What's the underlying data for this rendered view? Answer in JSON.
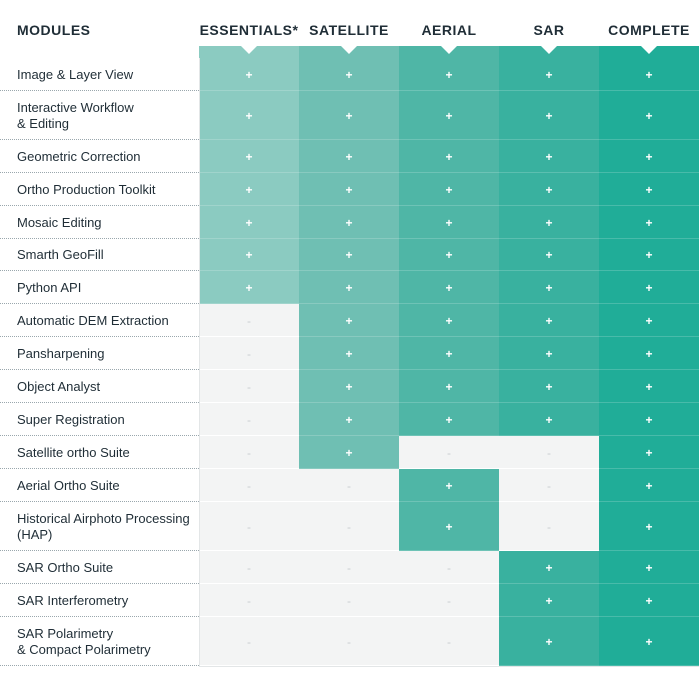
{
  "header": {
    "modules_label": "MODULES",
    "columns": [
      "ESSENTIALS*",
      "SATELLITE",
      "AERIAL",
      "SAR",
      "COMPLETE"
    ]
  },
  "symbols": {
    "included": "+",
    "excluded": "-"
  },
  "colors": {
    "col0": "#8bcbc1",
    "col1": "#6fbfb3",
    "col2": "#4fb6a6",
    "col3": "#39b19f",
    "col4": "#20ad98",
    "off": "#f3f4f4",
    "text": "#1f2d36"
  },
  "rows": [
    {
      "label": "Image & Layer View",
      "cells": [
        1,
        1,
        1,
        1,
        1
      ]
    },
    {
      "label": "Interactive Workflow\n& Editing",
      "cells": [
        1,
        1,
        1,
        1,
        1
      ]
    },
    {
      "label": "Geometric Correction",
      "cells": [
        1,
        1,
        1,
        1,
        1
      ]
    },
    {
      "label": "Ortho Production Toolkit",
      "cells": [
        1,
        1,
        1,
        1,
        1
      ]
    },
    {
      "label": "Mosaic Editing",
      "cells": [
        1,
        1,
        1,
        1,
        1
      ]
    },
    {
      "label": "Smarth GeoFill",
      "cells": [
        1,
        1,
        1,
        1,
        1
      ]
    },
    {
      "label": "Python API",
      "cells": [
        1,
        1,
        1,
        1,
        1
      ]
    },
    {
      "label": "Automatic DEM Extraction",
      "cells": [
        0,
        1,
        1,
        1,
        1
      ]
    },
    {
      "label": "Pansharpening",
      "cells": [
        0,
        1,
        1,
        1,
        1
      ]
    },
    {
      "label": "Object Analyst",
      "cells": [
        0,
        1,
        1,
        1,
        1
      ]
    },
    {
      "label": "Super Registration",
      "cells": [
        0,
        1,
        1,
        1,
        1
      ]
    },
    {
      "label": "Satellite ortho Suite",
      "cells": [
        0,
        1,
        0,
        0,
        1
      ]
    },
    {
      "label": "Aerial Ortho Suite",
      "cells": [
        0,
        0,
        1,
        0,
        1
      ]
    },
    {
      "label": "Historical Airphoto Processing\n(HAP)",
      "cells": [
        0,
        0,
        1,
        0,
        1
      ]
    },
    {
      "label": "SAR Ortho Suite",
      "cells": [
        0,
        0,
        0,
        1,
        1
      ]
    },
    {
      "label": "SAR Interferometry",
      "cells": [
        0,
        0,
        0,
        1,
        1
      ]
    },
    {
      "label": "SAR Polarimetry\n& Compact Polarimetry",
      "cells": [
        0,
        0,
        0,
        1,
        1
      ]
    }
  ]
}
